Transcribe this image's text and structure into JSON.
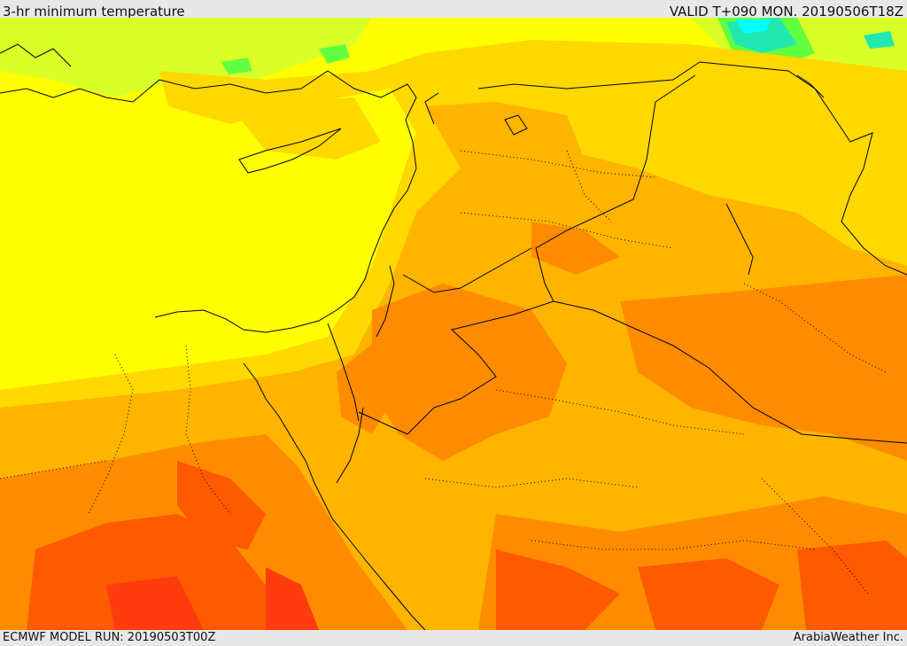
{
  "header": {
    "title": "3-hr minimum temperature",
    "valid": "VALID T+090 MON. 20190506T18Z"
  },
  "footer": {
    "run": "ECMWF MODEL RUN: 20190503T00Z",
    "credit": "ArabiaWeather Inc."
  },
  "colors": {
    "sea": "#ffff00",
    "yellow_warm": "#ffd800",
    "light_orange": "#ffb400",
    "orange": "#ff8c00",
    "dark_orange": "#ff5a00",
    "red_orange": "#ff3c10",
    "yellow_green": "#d8ff28",
    "green": "#60ff40",
    "teal": "#20e8b0",
    "cyan": "#00ffff",
    "boundary": "#000000"
  }
}
